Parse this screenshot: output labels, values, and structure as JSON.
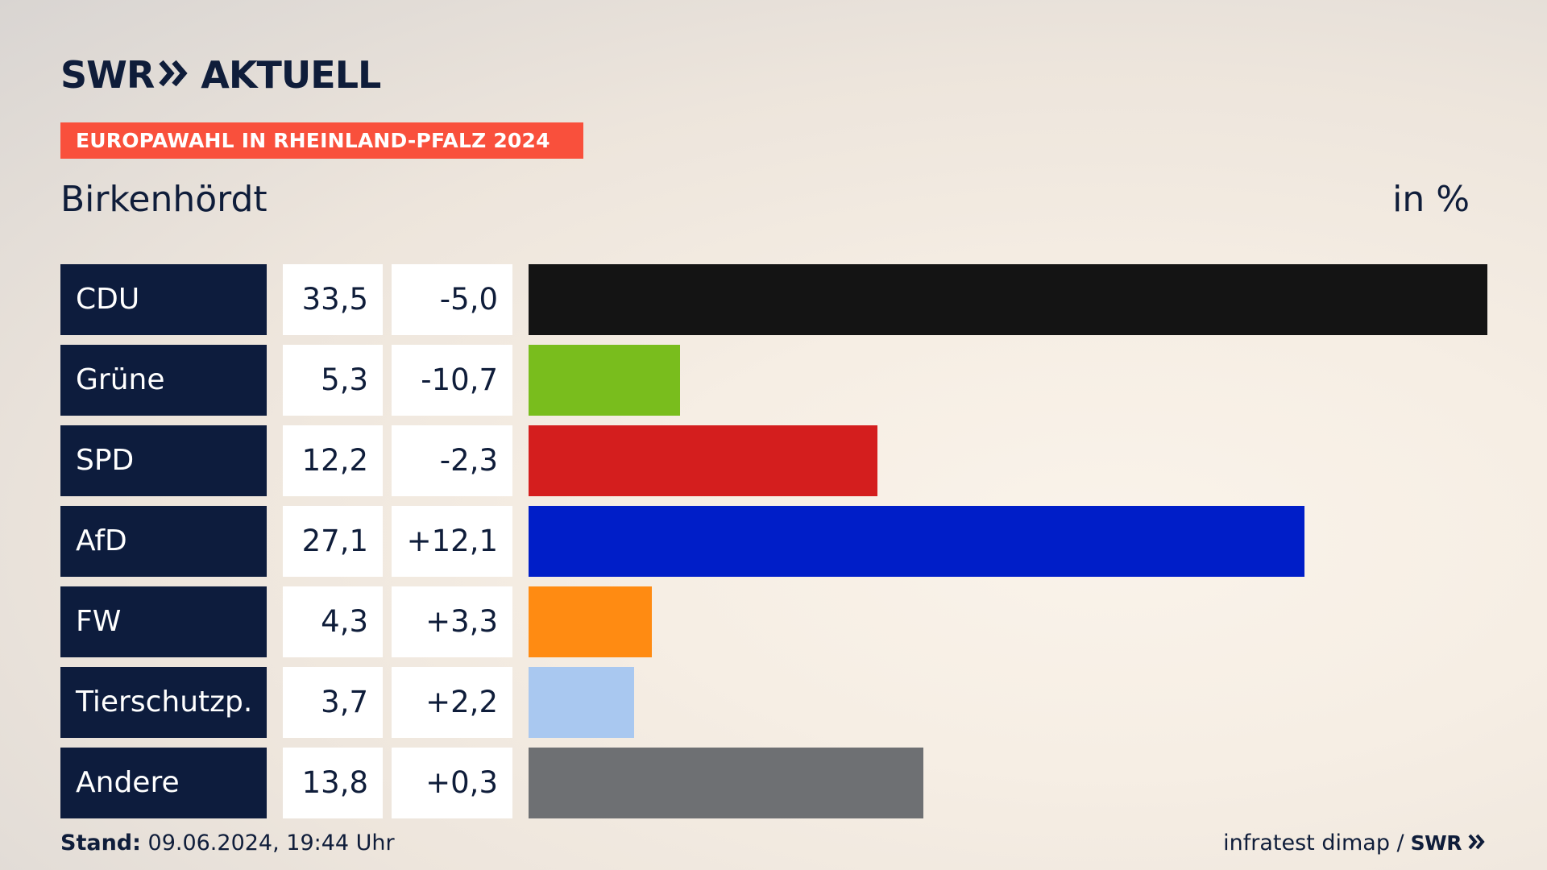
{
  "header": {
    "brand": "SWR",
    "brand_suffix": "AKTUELL",
    "banner": "EUROPAWAHL IN RHEINLAND-PFALZ 2024"
  },
  "place": "Birkenhördt",
  "unit": "in %",
  "colors": {
    "navy": "#0d1c3d",
    "banner": "#f9503c"
  },
  "chart_data": {
    "type": "bar",
    "orientation": "horizontal",
    "categories": [
      "CDU",
      "Grüne",
      "SPD",
      "AfD",
      "FW",
      "Tierschutzp.",
      "Andere"
    ],
    "values": [
      33.5,
      5.3,
      12.2,
      27.1,
      4.3,
      3.7,
      13.8
    ],
    "value_labels": [
      "33,5",
      "5,3",
      "12,2",
      "27,1",
      "4,3",
      "3,7",
      "13,8"
    ],
    "diff_labels": [
      "-5,0",
      "-10,7",
      "-2,3",
      "+12,1",
      "+3,3",
      "+2,2",
      "+0,3"
    ],
    "diffs": [
      -5.0,
      -10.7,
      -2.3,
      12.1,
      3.3,
      2.2,
      0.3
    ],
    "colors": [
      "#141414",
      "#79bd1d",
      "#d41e1e",
      "#001ec8",
      "#ff8b12",
      "#a9c8f0",
      "#6e7073"
    ],
    "xlim": [
      0,
      33.5
    ],
    "grid": false
  },
  "footer": {
    "stand_label": "Stand:",
    "stand_value": "09.06.2024, 19:44 Uhr",
    "source": "infratest dimap /",
    "source_brand": "SWR"
  }
}
